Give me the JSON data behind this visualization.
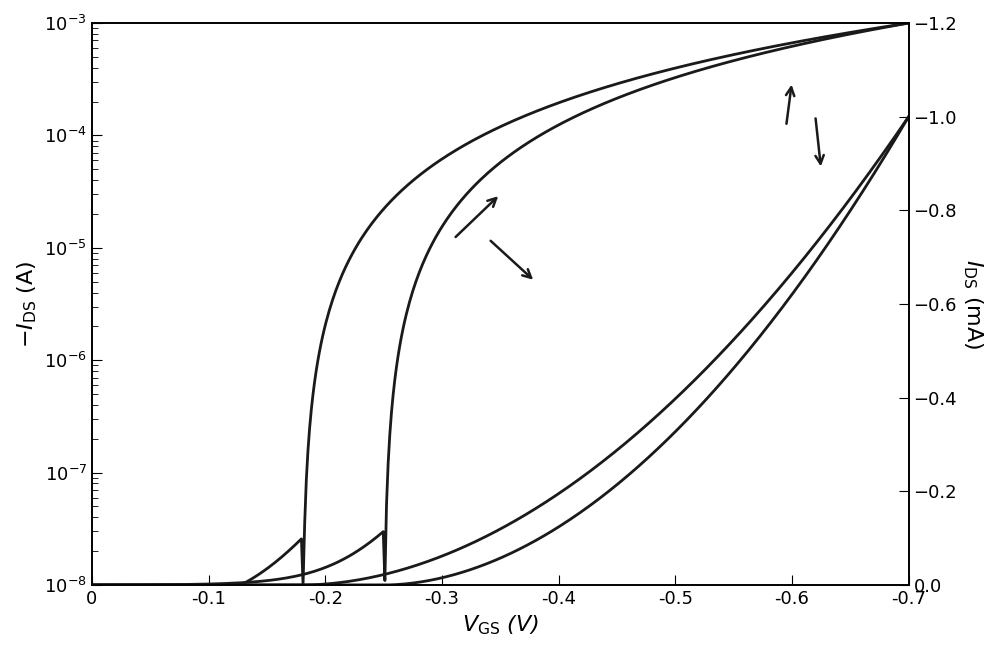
{
  "title": "",
  "xlabel": "$V_{\\mathrm{GS}}$ (V)",
  "ylabel_left": "$-I_{\\mathrm{DS}}$ (A)",
  "ylabel_right": "$I_{\\mathrm{DS}}$ (mA)",
  "xmin": 0.0,
  "xmax": -0.7,
  "ylog_min": 1e-08,
  "ylog_max": 0.001,
  "ylin_min": 0.0,
  "ylin_max": -1.2,
  "line_color": "#1a1a1a",
  "line_width": 2.0,
  "background_color": "#ffffff",
  "figsize": [
    10.0,
    6.52
  ],
  "dpi": 100
}
